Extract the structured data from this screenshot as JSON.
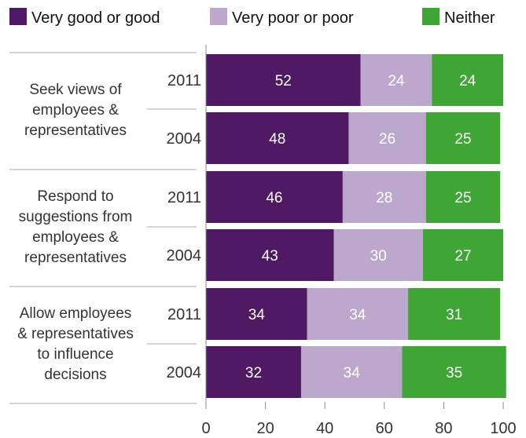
{
  "chart_data": {
    "type": "bar",
    "orientation": "horizontal",
    "stacked": true,
    "title": "",
    "xlabel": "",
    "ylabel": "",
    "xlim": [
      0,
      100
    ],
    "x_ticks": [
      "0",
      "20",
      "40",
      "60",
      "80",
      "100"
    ],
    "legend_position": "top",
    "grid": false,
    "series": [
      {
        "name": "Very good or good",
        "color": "#4f1a63"
      },
      {
        "name": "Very poor or poor",
        "color": "#bca8cd"
      },
      {
        "name": "Neither",
        "color": "#3fa535"
      }
    ],
    "groups": [
      {
        "label_lines": [
          "Seek views of",
          "employees &",
          "representatives"
        ],
        "bars": [
          {
            "year": "2011",
            "values": [
              52,
              24,
              24
            ]
          },
          {
            "year": "2004",
            "values": [
              48,
              26,
              25
            ]
          }
        ]
      },
      {
        "label_lines": [
          "Respond to",
          "suggestions from",
          "employees &",
          "representatives"
        ],
        "bars": [
          {
            "year": "2011",
            "values": [
              46,
              28,
              25
            ]
          },
          {
            "year": "2004",
            "values": [
              43,
              30,
              27
            ]
          }
        ]
      },
      {
        "label_lines": [
          "Allow employees",
          "& representatives",
          "to influence",
          "decisions"
        ],
        "bars": [
          {
            "year": "2011",
            "values": [
              34,
              34,
              31
            ]
          },
          {
            "year": "2004",
            "values": [
              32,
              34,
              35
            ]
          }
        ]
      }
    ]
  }
}
